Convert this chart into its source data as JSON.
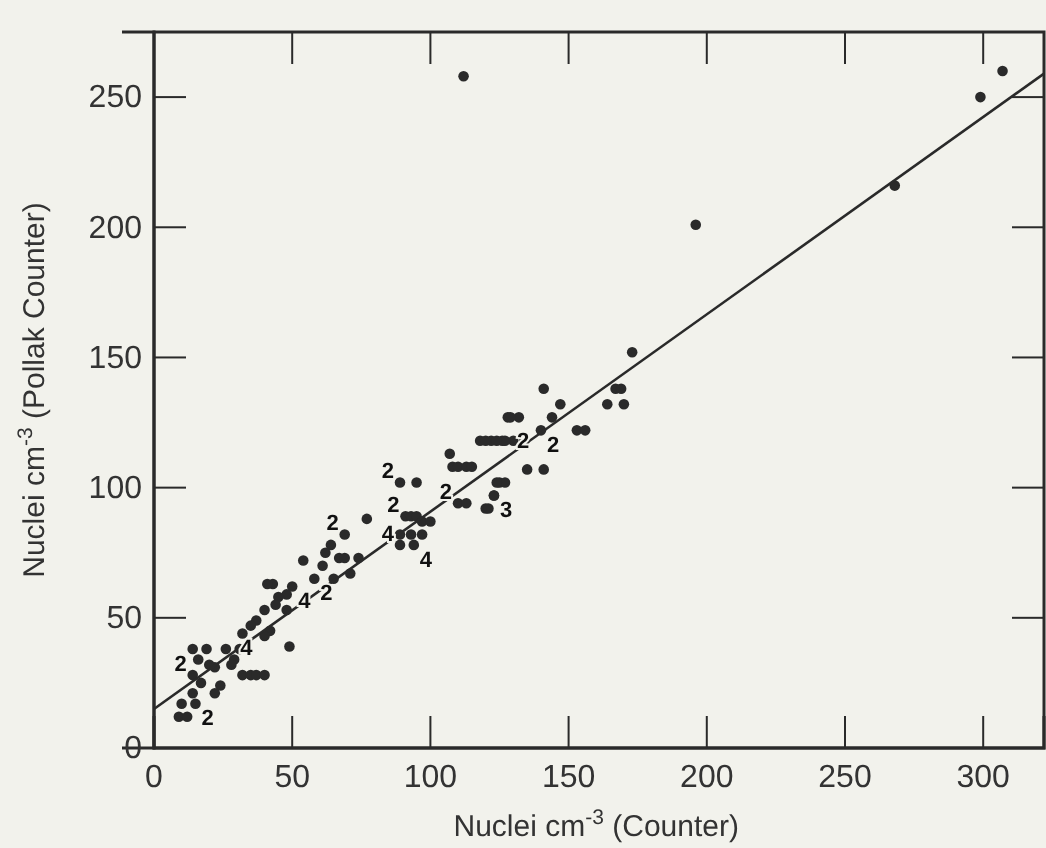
{
  "chart_data": {
    "type": "scatter",
    "xlabel": "Nuclei cm$^{-3}$ (Counter)",
    "ylabel": "Nuclei cm$^{-3}$ (Pollak Counter)",
    "xlim": [
      0,
      322
    ],
    "ylim": [
      0,
      275
    ],
    "xticks": [
      0,
      50,
      100,
      150,
      200,
      250,
      300
    ],
    "yticks": [
      0,
      50,
      100,
      150,
      200,
      250
    ],
    "marker": "circle",
    "grid": false,
    "series": [
      {
        "type": "scatter",
        "color": "#2a2a2a",
        "x": [
          112,
          196,
          268,
          299,
          307,
          173,
          167,
          169,
          164,
          170,
          141,
          147,
          128,
          132,
          144,
          140,
          153,
          156,
          134,
          118,
          122,
          126,
          130,
          135,
          141,
          125,
          127,
          123,
          120,
          129,
          127,
          124,
          120,
          108,
          110,
          113,
          115,
          107,
          124,
          123,
          121,
          110,
          113,
          89,
          95,
          91,
          93,
          95,
          97,
          100,
          89,
          93,
          97,
          89,
          94,
          77,
          67,
          69,
          74,
          64,
          62,
          61,
          65,
          58,
          71,
          69,
          54,
          50,
          48,
          43,
          41,
          45,
          44,
          48,
          40,
          37,
          42,
          40,
          35,
          32,
          49,
          31,
          26,
          29,
          32,
          35,
          14,
          19,
          16,
          20,
          22,
          14,
          17,
          24,
          22,
          14,
          15,
          9,
          12,
          10,
          28,
          37,
          40
        ],
        "values": [
          258,
          201,
          216,
          250,
          260,
          152,
          138,
          138,
          132,
          132,
          138,
          132,
          127,
          127,
          127,
          122,
          122,
          122,
          118,
          118,
          118,
          118,
          118,
          107,
          107,
          102,
          102,
          97,
          92,
          127,
          118,
          118,
          118,
          108,
          108,
          108,
          108,
          113,
          102,
          97,
          92,
          94,
          94,
          102,
          102,
          89,
          89,
          89,
          87,
          87,
          82,
          82,
          82,
          78,
          78,
          88,
          73,
          73,
          73,
          78,
          75,
          70,
          65,
          65,
          67,
          82,
          72,
          62,
          59,
          63,
          63,
          58,
          55,
          53,
          53,
          49,
          45,
          43,
          47,
          44,
          39,
          38,
          38,
          34,
          28,
          28,
          38,
          38,
          34,
          32,
          31,
          28,
          25,
          24,
          21,
          21,
          17,
          12,
          12,
          17,
          32,
          28,
          28
        ]
      },
      {
        "type": "line",
        "marker": "none",
        "color": "#2a2a2a",
        "x": [
          0,
          322
        ],
        "values": [
          15,
          259
        ]
      }
    ],
    "annotations": [
      {
        "text": "2",
        "x": 14,
        "y": 28
      },
      {
        "text": "4",
        "x": 29,
        "y": 34
      },
      {
        "text": "2",
        "x": 15,
        "y": 17
      },
      {
        "text": "4",
        "x": 50,
        "y": 62
      },
      {
        "text": "2",
        "x": 58,
        "y": 65
      },
      {
        "text": "2",
        "x": 69,
        "y": 82
      },
      {
        "text": "2",
        "x": 89,
        "y": 102
      },
      {
        "text": "2",
        "x": 91,
        "y": 89
      },
      {
        "text": "4",
        "x": 89,
        "y": 78
      },
      {
        "text": "4",
        "x": 94,
        "y": 78
      },
      {
        "text": "2",
        "x": 110,
        "y": 94
      },
      {
        "text": "3",
        "x": 123,
        "y": 97
      },
      {
        "text": "2",
        "x": 127,
        "y": 118
      },
      {
        "text": "2",
        "x": 140,
        "y": 122
      }
    ]
  }
}
